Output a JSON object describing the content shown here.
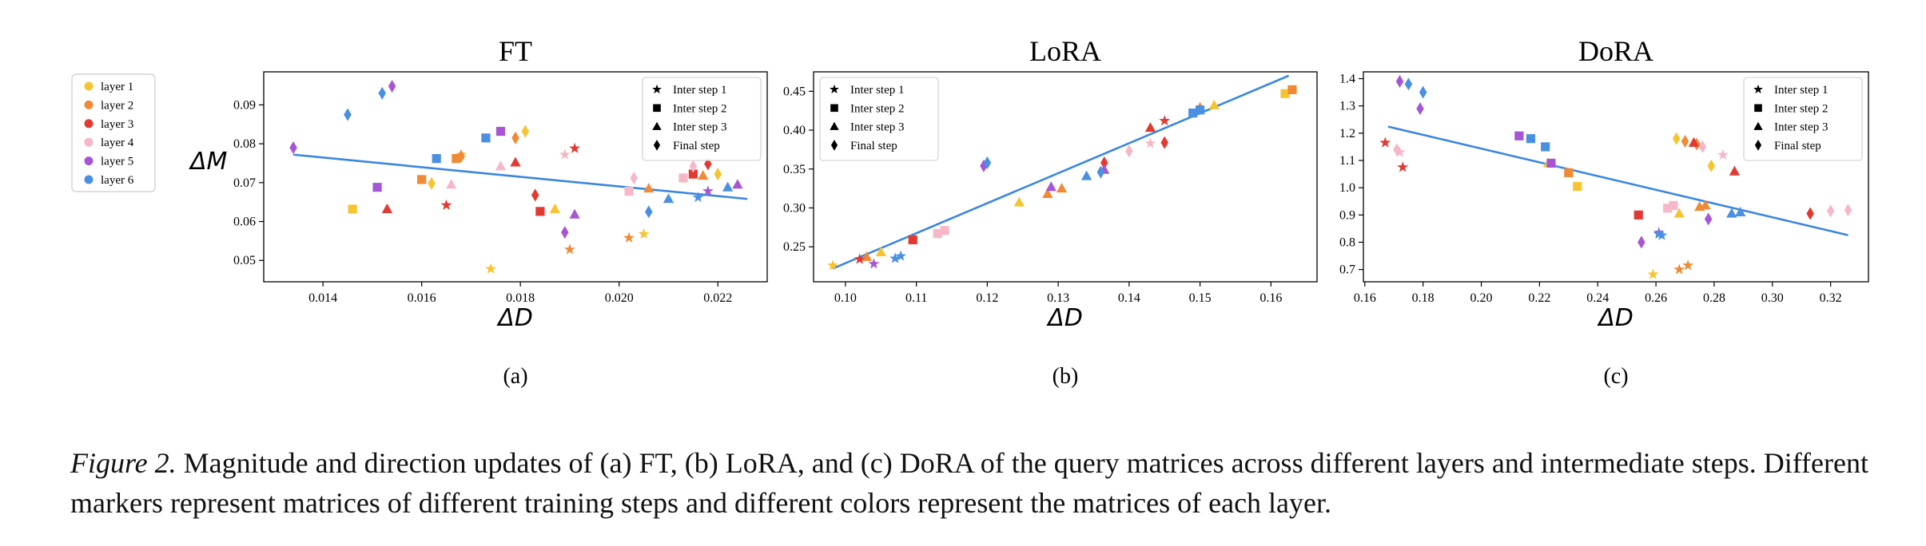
{
  "figure": {
    "caption_label": "Figure 2.",
    "caption_text": " Magnitude and direction updates of (a) FT, (b) LoRA, and (c) DoRA of the query matrices across different layers and intermediate steps. Different markers represent matrices of different training steps and different colors represent the matrices of each layer."
  },
  "layer_legend": [
    {
      "label": "layer 1",
      "color": "#f7c431"
    },
    {
      "label": "layer 2",
      "color": "#f08a35"
    },
    {
      "label": "layer 3",
      "color": "#e23a32"
    },
    {
      "label": "layer 4",
      "color": "#f6b8c6"
    },
    {
      "label": "layer 5",
      "color": "#a656d2"
    },
    {
      "label": "layer 6",
      "color": "#4a90e2"
    }
  ],
  "marker_legend": [
    {
      "label": "Inter step 1",
      "shape": "star"
    },
    {
      "label": "Inter step 2",
      "shape": "square"
    },
    {
      "label": "Inter step 3",
      "shape": "triangle"
    },
    {
      "label": "Final step",
      "shape": "diamond"
    }
  ],
  "chart_data": [
    {
      "type": "scatter",
      "title": "FT",
      "sublabel": "(a)",
      "xlabel": "ΔD",
      "ylabel": "ΔM",
      "xlim": [
        0.0128,
        0.023
      ],
      "ylim": [
        0.0445,
        0.0985
      ],
      "xticks": [
        "0.014",
        "0.016",
        "0.018",
        "0.020",
        "0.022"
      ],
      "xtick_values": [
        0.014,
        0.016,
        0.018,
        0.02,
        0.022
      ],
      "yticks": [
        "0.05",
        "0.06",
        "0.07",
        "0.08",
        "0.09"
      ],
      "ytick_values": [
        0.05,
        0.06,
        0.07,
        0.08,
        0.09
      ],
      "trend": [
        [
          0.0134,
          0.0772
        ],
        [
          0.0226,
          0.0658
        ]
      ],
      "legend_position": "top-right",
      "points": [
        {
          "x": 0.0146,
          "y": 0.0632,
          "layer": 1,
          "step": 2
        },
        {
          "x": 0.0162,
          "y": 0.0698,
          "layer": 1,
          "step": 4
        },
        {
          "x": 0.0168,
          "y": 0.0772,
          "layer": 1,
          "step": 1
        },
        {
          "x": 0.0181,
          "y": 0.0832,
          "layer": 1,
          "step": 4
        },
        {
          "x": 0.0174,
          "y": 0.0478,
          "layer": 1,
          "step": 1
        },
        {
          "x": 0.0187,
          "y": 0.0632,
          "layer": 1,
          "step": 3
        },
        {
          "x": 0.0205,
          "y": 0.0568,
          "layer": 1,
          "step": 1
        },
        {
          "x": 0.022,
          "y": 0.0722,
          "layer": 1,
          "step": 4
        },
        {
          "x": 0.016,
          "y": 0.0708,
          "layer": 2,
          "step": 2
        },
        {
          "x": 0.0167,
          "y": 0.0762,
          "layer": 2,
          "step": 2
        },
        {
          "x": 0.0168,
          "y": 0.0768,
          "layer": 2,
          "step": 4
        },
        {
          "x": 0.0179,
          "y": 0.0815,
          "layer": 2,
          "step": 4
        },
        {
          "x": 0.019,
          "y": 0.0528,
          "layer": 2,
          "step": 1
        },
        {
          "x": 0.0202,
          "y": 0.0558,
          "layer": 2,
          "step": 1
        },
        {
          "x": 0.0206,
          "y": 0.0685,
          "layer": 2,
          "step": 3
        },
        {
          "x": 0.0217,
          "y": 0.0718,
          "layer": 2,
          "step": 3
        },
        {
          "x": 0.0153,
          "y": 0.0632,
          "layer": 3,
          "step": 3
        },
        {
          "x": 0.0165,
          "y": 0.0642,
          "layer": 3,
          "step": 1
        },
        {
          "x": 0.0179,
          "y": 0.0752,
          "layer": 3,
          "step": 3
        },
        {
          "x": 0.0183,
          "y": 0.0668,
          "layer": 3,
          "step": 4
        },
        {
          "x": 0.0184,
          "y": 0.0626,
          "layer": 3,
          "step": 2
        },
        {
          "x": 0.0191,
          "y": 0.0788,
          "layer": 3,
          "step": 1
        },
        {
          "x": 0.0215,
          "y": 0.0722,
          "layer": 3,
          "step": 2
        },
        {
          "x": 0.0218,
          "y": 0.0748,
          "layer": 3,
          "step": 4
        },
        {
          "x": 0.0166,
          "y": 0.0695,
          "layer": 4,
          "step": 3
        },
        {
          "x": 0.0176,
          "y": 0.0742,
          "layer": 4,
          "step": 3
        },
        {
          "x": 0.0189,
          "y": 0.0772,
          "layer": 4,
          "step": 1
        },
        {
          "x": 0.0202,
          "y": 0.0678,
          "layer": 4,
          "step": 2
        },
        {
          "x": 0.0203,
          "y": 0.0712,
          "layer": 4,
          "step": 4
        },
        {
          "x": 0.0213,
          "y": 0.0712,
          "layer": 4,
          "step": 2
        },
        {
          "x": 0.0215,
          "y": 0.0742,
          "layer": 4,
          "step": 4
        },
        {
          "x": 0.0134,
          "y": 0.079,
          "layer": 5,
          "step": 4
        },
        {
          "x": 0.0151,
          "y": 0.0688,
          "layer": 5,
          "step": 2
        },
        {
          "x": 0.0154,
          "y": 0.0948,
          "layer": 5,
          "step": 4
        },
        {
          "x": 0.0176,
          "y": 0.0832,
          "layer": 5,
          "step": 2
        },
        {
          "x": 0.0189,
          "y": 0.0572,
          "layer": 5,
          "step": 4
        },
        {
          "x": 0.0191,
          "y": 0.0618,
          "layer": 5,
          "step": 3
        },
        {
          "x": 0.0218,
          "y": 0.0678,
          "layer": 5,
          "step": 1
        },
        {
          "x": 0.0224,
          "y": 0.0695,
          "layer": 5,
          "step": 3
        },
        {
          "x": 0.0145,
          "y": 0.0875,
          "layer": 6,
          "step": 4
        },
        {
          "x": 0.0152,
          "y": 0.093,
          "layer": 6,
          "step": 4
        },
        {
          "x": 0.0163,
          "y": 0.0762,
          "layer": 6,
          "step": 2
        },
        {
          "x": 0.0173,
          "y": 0.0815,
          "layer": 6,
          "step": 2
        },
        {
          "x": 0.0206,
          "y": 0.0625,
          "layer": 6,
          "step": 4
        },
        {
          "x": 0.021,
          "y": 0.0658,
          "layer": 6,
          "step": 3
        },
        {
          "x": 0.0216,
          "y": 0.0662,
          "layer": 6,
          "step": 1
        },
        {
          "x": 0.0222,
          "y": 0.0688,
          "layer": 6,
          "step": 3
        }
      ]
    },
    {
      "type": "scatter",
      "title": "LoRA",
      "sublabel": "(b)",
      "xlabel": "ΔD",
      "ylabel": "",
      "xlim": [
        0.0955,
        0.1665
      ],
      "ylim": [
        0.205,
        0.475
      ],
      "xticks": [
        "0.10",
        "0.11",
        "0.12",
        "0.13",
        "0.14",
        "0.15",
        "0.16"
      ],
      "xtick_values": [
        0.1,
        0.11,
        0.12,
        0.13,
        0.14,
        0.15,
        0.16
      ],
      "yticks": [
        "0.25",
        "0.30",
        "0.35",
        "0.40",
        "0.45"
      ],
      "ytick_values": [
        0.25,
        0.3,
        0.35,
        0.4,
        0.45
      ],
      "trend": [
        [
          0.0982,
          0.222
        ],
        [
          0.1625,
          0.47
        ]
      ],
      "legend_position": "top-left",
      "points": [
        {
          "x": 0.0982,
          "y": 0.226,
          "layer": 1,
          "step": 1
        },
        {
          "x": 0.105,
          "y": 0.243,
          "layer": 1,
          "step": 3
        },
        {
          "x": 0.1245,
          "y": 0.307,
          "layer": 1,
          "step": 3
        },
        {
          "x": 0.152,
          "y": 0.432,
          "layer": 1,
          "step": 3
        },
        {
          "x": 0.162,
          "y": 0.447,
          "layer": 1,
          "step": 2
        },
        {
          "x": 0.103,
          "y": 0.237,
          "layer": 2,
          "step": 3
        },
        {
          "x": 0.1285,
          "y": 0.318,
          "layer": 2,
          "step": 3
        },
        {
          "x": 0.1305,
          "y": 0.325,
          "layer": 2,
          "step": 3
        },
        {
          "x": 0.15,
          "y": 0.428,
          "layer": 2,
          "step": 4
        },
        {
          "x": 0.163,
          "y": 0.452,
          "layer": 2,
          "step": 2
        },
        {
          "x": 0.102,
          "y": 0.234,
          "layer": 3,
          "step": 1
        },
        {
          "x": 0.1095,
          "y": 0.259,
          "layer": 3,
          "step": 2
        },
        {
          "x": 0.1365,
          "y": 0.358,
          "layer": 3,
          "step": 4
        },
        {
          "x": 0.143,
          "y": 0.403,
          "layer": 3,
          "step": 3
        },
        {
          "x": 0.145,
          "y": 0.412,
          "layer": 3,
          "step": 1
        },
        {
          "x": 0.145,
          "y": 0.384,
          "layer": 3,
          "step": 4
        },
        {
          "x": 0.113,
          "y": 0.267,
          "layer": 4,
          "step": 2
        },
        {
          "x": 0.114,
          "y": 0.271,
          "layer": 4,
          "step": 2
        },
        {
          "x": 0.14,
          "y": 0.373,
          "layer": 4,
          "step": 4
        },
        {
          "x": 0.143,
          "y": 0.383,
          "layer": 4,
          "step": 1
        },
        {
          "x": 0.104,
          "y": 0.228,
          "layer": 5,
          "step": 1
        },
        {
          "x": 0.1195,
          "y": 0.354,
          "layer": 5,
          "step": 4
        },
        {
          "x": 0.129,
          "y": 0.327,
          "layer": 5,
          "step": 3
        },
        {
          "x": 0.1365,
          "y": 0.349,
          "layer": 5,
          "step": 3
        },
        {
          "x": 0.107,
          "y": 0.235,
          "layer": 6,
          "step": 1
        },
        {
          "x": 0.1078,
          "y": 0.238,
          "layer": 6,
          "step": 1
        },
        {
          "x": 0.12,
          "y": 0.358,
          "layer": 6,
          "step": 4
        },
        {
          "x": 0.134,
          "y": 0.341,
          "layer": 6,
          "step": 3
        },
        {
          "x": 0.136,
          "y": 0.346,
          "layer": 6,
          "step": 4
        },
        {
          "x": 0.149,
          "y": 0.422,
          "layer": 6,
          "step": 2
        },
        {
          "x": 0.15,
          "y": 0.426,
          "layer": 6,
          "step": 2
        }
      ]
    },
    {
      "type": "scatter",
      "title": "DoRA",
      "sublabel": "(c)",
      "xlabel": "ΔD",
      "ylabel": "",
      "xlim": [
        0.1595,
        0.333
      ],
      "ylim": [
        0.655,
        1.425
      ],
      "xticks": [
        "0.16",
        "0.18",
        "0.20",
        "0.22",
        "0.24",
        "0.26",
        "0.28",
        "0.30",
        "0.32"
      ],
      "xtick_values": [
        0.16,
        0.18,
        0.2,
        0.22,
        0.24,
        0.26,
        0.28,
        0.3,
        0.32
      ],
      "yticks": [
        "0.7",
        "0.8",
        "0.9",
        "1.0",
        "1.1",
        "1.2",
        "1.3",
        "1.4"
      ],
      "ytick_values": [
        0.7,
        0.8,
        0.9,
        1.0,
        1.1,
        1.2,
        1.3,
        1.4
      ],
      "trend": [
        [
          0.168,
          1.224
        ],
        [
          0.326,
          0.826
        ]
      ],
      "legend_position": "top-right",
      "points": [
        {
          "x": 0.223,
          "y": 1.09,
          "layer": 1,
          "step": 3
        },
        {
          "x": 0.233,
          "y": 1.005,
          "layer": 1,
          "step": 2
        },
        {
          "x": 0.259,
          "y": 0.682,
          "layer": 1,
          "step": 1
        },
        {
          "x": 0.268,
          "y": 0.905,
          "layer": 1,
          "step": 3
        },
        {
          "x": 0.267,
          "y": 1.18,
          "layer": 1,
          "step": 4
        },
        {
          "x": 0.279,
          "y": 1.08,
          "layer": 1,
          "step": 4
        },
        {
          "x": 0.23,
          "y": 1.055,
          "layer": 2,
          "step": 2
        },
        {
          "x": 0.268,
          "y": 0.7,
          "layer": 2,
          "step": 1
        },
        {
          "x": 0.271,
          "y": 0.715,
          "layer": 2,
          "step": 1
        },
        {
          "x": 0.27,
          "y": 1.17,
          "layer": 2,
          "step": 4
        },
        {
          "x": 0.274,
          "y": 1.16,
          "layer": 2,
          "step": 4
        },
        {
          "x": 0.275,
          "y": 0.93,
          "layer": 2,
          "step": 3
        },
        {
          "x": 0.277,
          "y": 0.935,
          "layer": 2,
          "step": 3
        },
        {
          "x": 0.167,
          "y": 1.165,
          "layer": 3,
          "step": 1
        },
        {
          "x": 0.173,
          "y": 1.075,
          "layer": 3,
          "step": 1
        },
        {
          "x": 0.254,
          "y": 0.9,
          "layer": 3,
          "step": 2
        },
        {
          "x": 0.273,
          "y": 1.165,
          "layer": 3,
          "step": 3
        },
        {
          "x": 0.287,
          "y": 1.06,
          "layer": 3,
          "step": 3
        },
        {
          "x": 0.313,
          "y": 0.905,
          "layer": 3,
          "step": 4
        },
        {
          "x": 0.172,
          "y": 1.13,
          "layer": 4,
          "step": 1
        },
        {
          "x": 0.171,
          "y": 1.14,
          "layer": 4,
          "step": 4
        },
        {
          "x": 0.264,
          "y": 0.925,
          "layer": 4,
          "step": 2
        },
        {
          "x": 0.266,
          "y": 0.935,
          "layer": 4,
          "step": 2
        },
        {
          "x": 0.276,
          "y": 1.15,
          "layer": 4,
          "step": 4
        },
        {
          "x": 0.283,
          "y": 1.12,
          "layer": 4,
          "step": 1
        },
        {
          "x": 0.32,
          "y": 0.915,
          "layer": 4,
          "step": 4
        },
        {
          "x": 0.326,
          "y": 0.918,
          "layer": 4,
          "step": 4
        },
        {
          "x": 0.172,
          "y": 1.39,
          "layer": 5,
          "step": 4
        },
        {
          "x": 0.179,
          "y": 1.29,
          "layer": 5,
          "step": 4
        },
        {
          "x": 0.213,
          "y": 1.19,
          "layer": 5,
          "step": 2
        },
        {
          "x": 0.224,
          "y": 1.09,
          "layer": 5,
          "step": 2
        },
        {
          "x": 0.255,
          "y": 0.8,
          "layer": 5,
          "step": 4
        },
        {
          "x": 0.261,
          "y": 0.835,
          "layer": 5,
          "step": 1
        },
        {
          "x": 0.278,
          "y": 0.885,
          "layer": 5,
          "step": 4
        },
        {
          "x": 0.175,
          "y": 1.38,
          "layer": 6,
          "step": 4
        },
        {
          "x": 0.18,
          "y": 1.35,
          "layer": 6,
          "step": 4
        },
        {
          "x": 0.217,
          "y": 1.18,
          "layer": 6,
          "step": 2
        },
        {
          "x": 0.222,
          "y": 1.15,
          "layer": 6,
          "step": 2
        },
        {
          "x": 0.261,
          "y": 0.83,
          "layer": 6,
          "step": 1
        },
        {
          "x": 0.262,
          "y": 0.825,
          "layer": 6,
          "step": 1
        },
        {
          "x": 0.286,
          "y": 0.905,
          "layer": 6,
          "step": 3
        },
        {
          "x": 0.289,
          "y": 0.91,
          "layer": 6,
          "step": 3
        }
      ]
    }
  ]
}
